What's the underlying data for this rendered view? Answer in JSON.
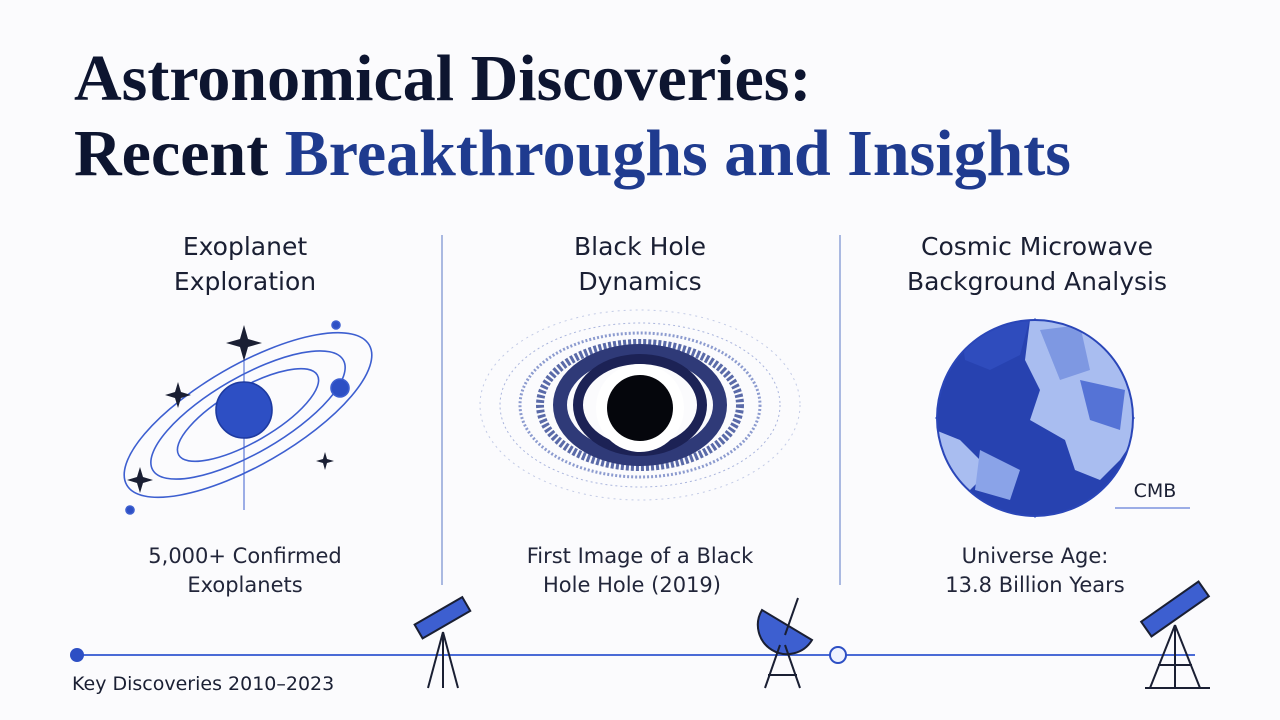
{
  "header": {
    "title_line1": "Astronomical Discoveries:",
    "title_line2_start": "Recent",
    "title_line2_accent": "Breakthroughs and Insights"
  },
  "columns": [
    {
      "heading": [
        "Exoplanet",
        "Exploration"
      ],
      "caption": [
        "5,000+ Confirmed",
        "Exoplanets"
      ]
    },
    {
      "heading": [
        "Black Hole",
        "Dynamics"
      ],
      "caption": [
        "First Image of a Black",
        "Hole Hole (2019)"
      ]
    },
    {
      "heading": [
        "Cosmic Microwave",
        "Background Analysis"
      ],
      "caption": [
        "Universe Age:",
        "13.8 Billion Years"
      ],
      "label": "CMB"
    }
  ],
  "timeline": {
    "label": "Key Discoveries 2010–2023"
  }
}
